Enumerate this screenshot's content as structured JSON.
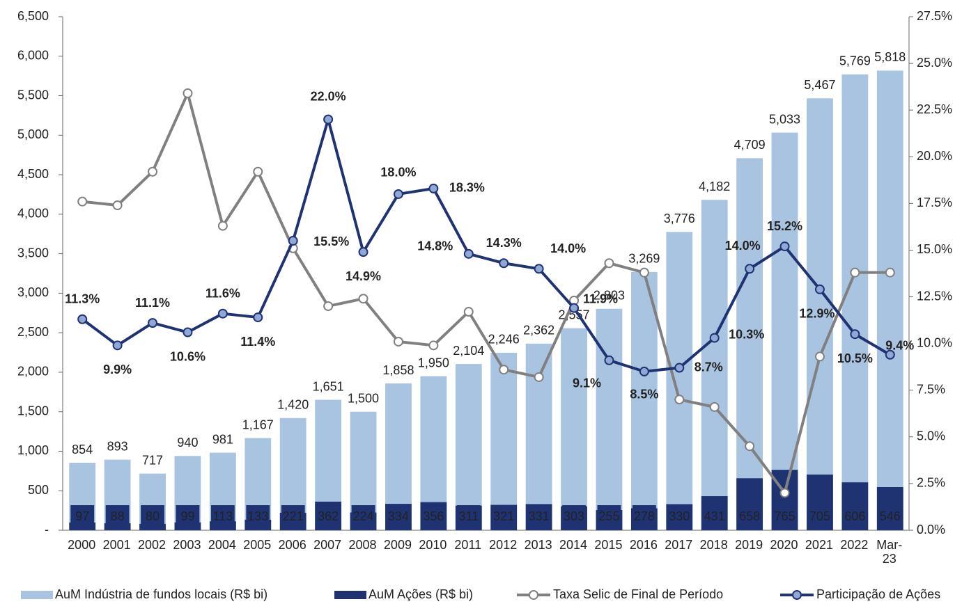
{
  "chart_data": {
    "type": "bar",
    "categories": [
      "2000",
      "2001",
      "2002",
      "2003",
      "2004",
      "2005",
      "2006",
      "2007",
      "2008",
      "2009",
      "2010",
      "2011",
      "2012",
      "2013",
      "2014",
      "2015",
      "2016",
      "2017",
      "2018",
      "2019",
      "2020",
      "2021",
      "2022",
      "Mar-23"
    ],
    "ylim": [
      0,
      6500
    ],
    "yticks": [
      {
        "value": 0,
        "label": "-"
      },
      500,
      {
        "value": 1000,
        "label": "1,000"
      },
      {
        "value": 1500,
        "label": "1,500"
      },
      {
        "value": 2000,
        "label": "2,000"
      },
      {
        "value": 2500,
        "label": "2,500"
      },
      {
        "value": 3000,
        "label": "3,000"
      },
      {
        "value": 3500,
        "label": "3,500"
      },
      {
        "value": 4000,
        "label": "4,000"
      },
      {
        "value": 4500,
        "label": "4,500"
      },
      {
        "value": 5000,
        "label": "5,000"
      },
      {
        "value": 5500,
        "label": "5,500"
      },
      {
        "value": 6000,
        "label": "6,000"
      },
      {
        "value": 6500,
        "label": "6,500"
      }
    ],
    "y2lim": [
      0,
      27.5
    ],
    "y2ticks": [
      {
        "value": 0,
        "label": "0.0%"
      },
      {
        "value": 2.5,
        "label": "2.5%"
      },
      {
        "value": 5,
        "label": "5.0%"
      },
      {
        "value": 7.5,
        "label": "7.5%"
      },
      {
        "value": 10,
        "label": "10.0%"
      },
      {
        "value": 12.5,
        "label": "12.5%"
      },
      {
        "value": 15,
        "label": "15.0%"
      },
      {
        "value": 17.5,
        "label": "17.5%"
      },
      {
        "value": 20,
        "label": "20.0%"
      },
      {
        "value": 22.5,
        "label": "22.5%"
      },
      {
        "value": 25,
        "label": "25.0%"
      },
      {
        "value": 27.5,
        "label": "27.5%"
      }
    ],
    "series": [
      {
        "name": "AuM Indústria de fundos locais (R$ bi)",
        "type": "bar",
        "color": "#a9c4e0",
        "values": [
          854,
          893,
          717,
          940,
          981,
          1167,
          1420,
          1651,
          1500,
          1858,
          1950,
          2104,
          2246,
          2362,
          2557,
          2803,
          3269,
          3776,
          4182,
          4709,
          5033,
          5467,
          5769,
          5818
        ],
        "value_labels": [
          "854",
          "893",
          "717",
          "940",
          "981",
          "1,167",
          "1,420",
          "1,651",
          "1,500",
          "1,858",
          "1,950",
          "2,104",
          "2,246",
          "2,362",
          "2,557",
          "2,803",
          "3,269",
          "3,776",
          "4,182",
          "4,709",
          "5,033",
          "5,467",
          "5,769",
          "5,818"
        ]
      },
      {
        "name": "AuM Ações (R$ bi)",
        "type": "bar",
        "color": "#1f3373",
        "values": [
          97,
          88,
          80,
          99,
          113,
          133,
          221,
          362,
          224,
          334,
          356,
          311,
          321,
          331,
          303,
          255,
          278,
          330,
          431,
          658,
          765,
          705,
          606,
          546
        ]
      },
      {
        "name": "Taxa Selic de Final de Período",
        "type": "line",
        "axis": "y2",
        "color": "#808080",
        "values": [
          17.6,
          17.4,
          19.2,
          23.4,
          16.3,
          19.2,
          15.1,
          12.0,
          12.4,
          10.1,
          9.9,
          11.7,
          8.6,
          8.2,
          12.3,
          14.3,
          13.8,
          7.0,
          6.6,
          4.5,
          2.0,
          9.3,
          13.8,
          13.8
        ]
      },
      {
        "name": "Participação de Ações",
        "type": "line",
        "axis": "y2",
        "color": "#1f3373",
        "values": [
          11.3,
          9.9,
          11.1,
          10.6,
          11.6,
          11.4,
          15.5,
          22.0,
          14.9,
          18.0,
          18.3,
          14.8,
          14.3,
          14.0,
          11.9,
          9.1,
          8.5,
          8.7,
          10.3,
          14.0,
          15.2,
          12.9,
          10.5,
          9.4
        ],
        "value_labels": [
          "11.3%",
          "9.9%",
          "11.1%",
          "10.6%",
          "11.6%",
          "11.4%",
          "15.5%",
          "22.0%",
          "14.9%",
          "18.0%",
          "18.3%",
          "14.8%",
          "14.3%",
          "14.0%",
          "11.9%",
          "9.1%",
          "8.5%",
          "8.7%",
          "10.3%",
          "14.0%",
          "15.2%",
          "12.9%",
          "10.5%",
          "9.4%"
        ]
      }
    ]
  }
}
